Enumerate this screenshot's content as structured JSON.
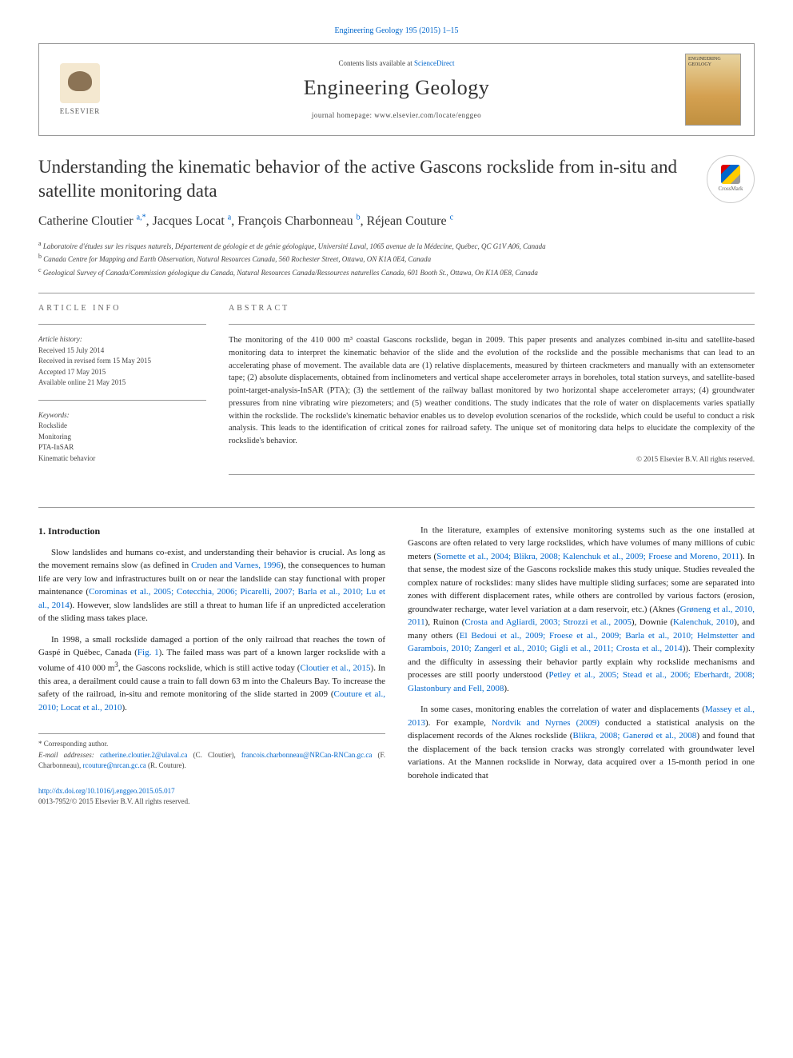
{
  "top_link": {
    "prefix": "",
    "journal": "Engineering Geology 195 (2015) 1–15",
    "href": "#"
  },
  "header": {
    "contents_prefix": "Contents lists available at ",
    "contents_link": "ScienceDirect",
    "journal_name": "Engineering Geology",
    "homepage": "journal homepage: www.elsevier.com/locate/enggeo",
    "elsevier_label": "ELSEVIER",
    "cover_title": "ENGINEERING GEOLOGY"
  },
  "article": {
    "title": "Understanding the kinematic behavior of the active Gascons rockslide from in-situ and satellite monitoring data",
    "crossmark_label": "CrossMark"
  },
  "authors": [
    {
      "name": "Catherine Cloutier ",
      "sup": "a,*"
    },
    {
      "name": ", Jacques Locat ",
      "sup": "a"
    },
    {
      "name": ", François Charbonneau ",
      "sup": "b"
    },
    {
      "name": ", Réjean Couture ",
      "sup": "c"
    }
  ],
  "affiliations": [
    {
      "sup": "a",
      "text": " Laboratoire d'études sur les risques naturels, Département de géologie et de génie géologique, Université Laval, 1065 avenue de la Médecine, Québec, QC G1V A06, Canada"
    },
    {
      "sup": "b",
      "text": " Canada Centre for Mapping and Earth Observation, Natural Resources Canada, 560 Rochester Street, Ottawa, ON K1A 0E4, Canada"
    },
    {
      "sup": "c",
      "text": " Geological Survey of Canada/Commission géologique du Canada, Natural Resources Canada/Ressources naturelles Canada, 601 Booth St., Ottawa, On K1A 0E8, Canada"
    }
  ],
  "article_info": {
    "heading": "ARTICLE INFO",
    "history_label": "Article history:",
    "history": [
      "Received 15 July 2014",
      "Received in revised form 15 May 2015",
      "Accepted 17 May 2015",
      "Available online 21 May 2015"
    ],
    "keywords_label": "Keywords:",
    "keywords": [
      "Rockslide",
      "Monitoring",
      "PTA-InSAR",
      "Kinematic behavior"
    ]
  },
  "abstract": {
    "heading": "ABSTRACT",
    "text": "The monitoring of the 410 000 m³ coastal Gascons rockslide, began in 2009. This paper presents and analyzes combined in-situ and satellite-based monitoring data to interpret the kinematic behavior of the slide and the evolution of the rockslide and the possible mechanisms that can lead to an accelerating phase of movement. The available data are (1) relative displacements, measured by thirteen crackmeters and manually with an extensometer tape; (2) absolute displacements, obtained from inclinometers and vertical shape accelerometer arrays in boreholes, total station surveys, and satellite-based point-target-analysis-InSAR (PTA); (3) the settlement of the railway ballast monitored by two horizontal shape accelerometer arrays; (4) groundwater pressures from nine vibrating wire piezometers; and (5) weather conditions. The study indicates that the role of water on displacements varies spatially within the rockslide. The rockslide's kinematic behavior enables us to develop evolution scenarios of the rockslide, which could be useful to conduct a risk analysis. This leads to the identification of critical zones for railroad safety. The unique set of monitoring data helps to elucidate the complexity of the rockslide's behavior.",
    "copyright": "© 2015 Elsevier B.V. All rights reserved."
  },
  "body": {
    "section_heading": "1. Introduction",
    "left": [
      {
        "type": "p",
        "runs": [
          {
            "t": "Slow landslides and humans co-exist, and understanding their behavior is crucial. As long as the movement remains slow (as defined in "
          },
          {
            "t": "Cruden and Varnes, 1996",
            "link": true
          },
          {
            "t": "), the consequences to human life are very low and infrastructures built on or near the landslide can stay functional with proper maintenance ("
          },
          {
            "t": "Corominas et al., 2005; Cotecchia, 2006; Picarelli, 2007; Barla et al., 2010; Lu et al., 2014",
            "link": true
          },
          {
            "t": "). However, slow landslides are still a threat to human life if an unpredicted acceleration of the sliding mass takes place."
          }
        ]
      },
      {
        "type": "p",
        "runs": [
          {
            "t": "In 1998, a small rockslide damaged a portion of the only railroad that reaches the town of Gaspé in Québec, Canada ("
          },
          {
            "t": "Fig. 1",
            "link": true
          },
          {
            "t": "). The failed mass was part of a known larger rockslide with a volume of 410 000 m"
          },
          {
            "t": "3",
            "sup": true
          },
          {
            "t": ", the Gascons rockslide, which is still active today ("
          },
          {
            "t": "Cloutier et al., 2015",
            "link": true
          },
          {
            "t": "). In this area, a derailment could cause a train to fall down 63 m into the Chaleurs Bay. To increase the safety of the railroad, in-situ and remote monitoring of the slide started in 2009 ("
          },
          {
            "t": "Couture et al., 2010; Locat et al., 2010",
            "link": true
          },
          {
            "t": ")."
          }
        ]
      }
    ],
    "right": [
      {
        "type": "p",
        "runs": [
          {
            "t": "In the literature, examples of extensive monitoring systems such as the one installed at Gascons are often related to very large rockslides, which have volumes of many millions of cubic meters ("
          },
          {
            "t": "Sornette et al., 2004; Blikra, 2008; Kalenchuk et al., 2009; Froese and Moreno, 2011",
            "link": true
          },
          {
            "t": "). In that sense, the modest size of the Gascons rockslide makes this study unique. Studies revealed the complex nature of rockslides: many slides have multiple sliding surfaces; some are separated into zones with different displacement rates, while others are controlled by various factors (erosion, groundwater recharge, water level variation at a dam reservoir, etc.) (Aknes ("
          },
          {
            "t": "Grøneng et al., 2010, 2011",
            "link": true
          },
          {
            "t": "), Ruinon ("
          },
          {
            "t": "Crosta and Agliardi, 2003; Strozzi et al., 2005",
            "link": true
          },
          {
            "t": "), Downie ("
          },
          {
            "t": "Kalenchuk, 2010",
            "link": true
          },
          {
            "t": "), and many others ("
          },
          {
            "t": "El Bedoui et al., 2009; Froese et al., 2009; Barla et al., 2010; Helmstetter and Garambois, 2010; Zangerl et al., 2010; Gigli et al., 2011; Crosta et al., 2014",
            "link": true
          },
          {
            "t": ")). Their complexity and the difficulty in assessing their behavior partly explain why rockslide mechanisms and processes are still poorly understood ("
          },
          {
            "t": "Petley et al., 2005; Stead et al., 2006; Eberhardt, 2008; Glastonbury and Fell, 2008",
            "link": true
          },
          {
            "t": ")."
          }
        ]
      },
      {
        "type": "p",
        "runs": [
          {
            "t": "In some cases, monitoring enables the correlation of water and displacements ("
          },
          {
            "t": "Massey et al., 2013",
            "link": true
          },
          {
            "t": "). For example, "
          },
          {
            "t": "Nordvik and Nyrnes (2009)",
            "link": true
          },
          {
            "t": " conducted a statistical analysis on the displacement records of the Aknes rockslide ("
          },
          {
            "t": "Blikra, 2008; Ganerød et al., 2008",
            "link": true
          },
          {
            "t": ") and found that the displacement of the back tension cracks was strongly correlated with groundwater level variations. At the Mannen rockslide in Norway, data acquired over a 15-month period in one borehole indicated that"
          }
        ]
      }
    ]
  },
  "footnotes": {
    "corresponding": "* Corresponding author.",
    "emails_label": "E-mail addresses: ",
    "emails": [
      {
        "addr": "catherine.cloutier.2@ulaval.ca",
        "who": " (C. Cloutier), "
      },
      {
        "addr": "francois.charbonneau@NRCan-RNCan.gc.ca",
        "who": " (F. Charbonneau), "
      },
      {
        "addr": "rcouture@nrcan.gc.ca",
        "who": " (R. Couture)."
      }
    ]
  },
  "footer": {
    "doi": "http://dx.doi.org/10.1016/j.enggeo.2015.05.017",
    "issn_line": "0013-7952/© 2015 Elsevier B.V. All rights reserved."
  },
  "colors": {
    "link": "#0066cc",
    "text": "#222222",
    "muted": "#444444",
    "border": "#999999"
  }
}
